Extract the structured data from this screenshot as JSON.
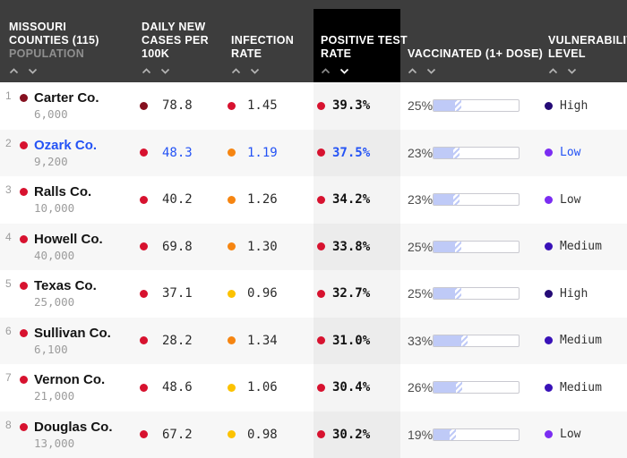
{
  "table": {
    "header": {
      "county": {
        "line1": "MISSOURI",
        "line2": "COUNTIES (115)",
        "sub": "POPULATION"
      },
      "cases": {
        "line1": "DAILY NEW",
        "line2": "CASES PER",
        "line3": "100K"
      },
      "infection": {
        "line1": "INFECTION",
        "line2": "RATE"
      },
      "positive": {
        "line1": "POSITIVE TEST",
        "line2": "RATE",
        "sort": "desc"
      },
      "vaccinated": {
        "line1": "VACCINATED (1+ DOSE)"
      },
      "vulnerability": {
        "line1": "VULNERABILITY",
        "line2": "LEVEL"
      }
    },
    "rows": [
      {
        "rank": "1",
        "county": "Carter Co.",
        "population": "6,000",
        "cases": "78.8",
        "cases_dot": "dark_red",
        "infection": "1.45",
        "infection_dot": "red",
        "positive": "39.3%",
        "positive_dot": "red",
        "vaccinated": "25%",
        "vaccinated_pct": 25,
        "vulnerability": "High",
        "vulnerability_dot": "high",
        "highlighted": false
      },
      {
        "rank": "2",
        "county": "Ozark Co.",
        "population": "9,200",
        "cases": "48.3",
        "cases_dot": "red",
        "infection": "1.19",
        "infection_dot": "orange",
        "positive": "37.5%",
        "positive_dot": "red",
        "vaccinated": "23%",
        "vaccinated_pct": 23,
        "vulnerability": "Low",
        "vulnerability_dot": "low",
        "highlighted": true
      },
      {
        "rank": "3",
        "county": "Ralls Co.",
        "population": "10,000",
        "cases": "40.2",
        "cases_dot": "red",
        "infection": "1.26",
        "infection_dot": "orange",
        "positive": "34.2%",
        "positive_dot": "red",
        "vaccinated": "23%",
        "vaccinated_pct": 23,
        "vulnerability": "Low",
        "vulnerability_dot": "low",
        "highlighted": false
      },
      {
        "rank": "4",
        "county": "Howell Co.",
        "population": "40,000",
        "cases": "69.8",
        "cases_dot": "red",
        "infection": "1.30",
        "infection_dot": "orange",
        "positive": "33.8%",
        "positive_dot": "red",
        "vaccinated": "25%",
        "vaccinated_pct": 25,
        "vulnerability": "Medium",
        "vulnerability_dot": "medium",
        "highlighted": false
      },
      {
        "rank": "5",
        "county": "Texas Co.",
        "population": "25,000",
        "cases": "37.1",
        "cases_dot": "red",
        "infection": "0.96",
        "infection_dot": "yellow",
        "positive": "32.7%",
        "positive_dot": "red",
        "vaccinated": "25%",
        "vaccinated_pct": 25,
        "vulnerability": "High",
        "vulnerability_dot": "high",
        "highlighted": false
      },
      {
        "rank": "6",
        "county": "Sullivan Co.",
        "population": "6,100",
        "cases": "28.2",
        "cases_dot": "red",
        "infection": "1.34",
        "infection_dot": "orange",
        "positive": "31.0%",
        "positive_dot": "red",
        "vaccinated": "33%",
        "vaccinated_pct": 33,
        "vulnerability": "Medium",
        "vulnerability_dot": "medium",
        "highlighted": false
      },
      {
        "rank": "7",
        "county": "Vernon Co.",
        "population": "21,000",
        "cases": "48.6",
        "cases_dot": "red",
        "infection": "1.06",
        "infection_dot": "yellow",
        "positive": "30.4%",
        "positive_dot": "red",
        "vaccinated": "26%",
        "vaccinated_pct": 26,
        "vulnerability": "Medium",
        "vulnerability_dot": "medium",
        "highlighted": false
      },
      {
        "rank": "8",
        "county": "Douglas Co.",
        "population": "13,000",
        "cases": "67.2",
        "cases_dot": "red",
        "infection": "0.98",
        "infection_dot": "yellow",
        "positive": "30.2%",
        "positive_dot": "red",
        "vaccinated": "19%",
        "vaccinated_pct": 19,
        "vulnerability": "Low",
        "vulnerability_dot": "low",
        "highlighted": false
      }
    ]
  },
  "colors": {
    "header_bg": "#3d3d3d",
    "sorted_header_bg": "#000000",
    "highlight_blue": "#2453f5",
    "bar_fill": "#bfcaf7",
    "dots": {
      "dark_red": "#85101f",
      "red": "#d7122f",
      "orange": "#f68511",
      "yellow": "#fcc200"
    },
    "vulnerability": {
      "high": "#250b76",
      "medium": "#3912b8",
      "low": "#7b2df2"
    }
  }
}
